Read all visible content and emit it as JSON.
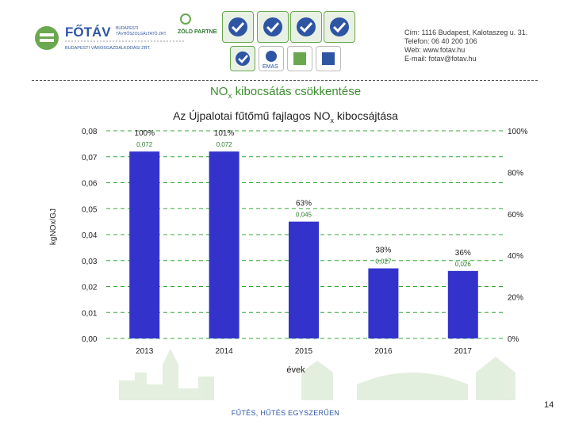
{
  "header": {
    "logo_name": "FŐTÁV",
    "logo_sub1": "BUDAPESTI",
    "logo_sub2": "TÁVHŐSZOLGÁLTATÓ ZRT.",
    "logo_sub3": "BUDAPESTI VÁROSGAZDÁLKODÁSI ZRT.",
    "partner_label": "ZÖLD PARTNER",
    "emas_label": "EMAS",
    "contact": {
      "address": "Cím: 1116 Budapest, Kalotaszeg u. 31.",
      "phone": "Telefon: 06 40 200 106",
      "web": "Web: www.fotav.hu",
      "email": "E-mail: fotav@fotav.hu"
    }
  },
  "main_title": "NOx kibocsátás csökkentése",
  "main_title_parts": {
    "pre": "NO",
    "sub": "x",
    "post": " kibocsátás csökkentése"
  },
  "chart_title_parts": {
    "pre": "Az Újpalotai fűtőmű fajlagos NO",
    "sub": "x",
    "post": " kibocsájtása"
  },
  "chart_data": {
    "type": "bar",
    "title": "Az Újpalotai fűtőmű fajlagos NOx kibocsájtása",
    "xlabel": "évek",
    "ylabel": "kgNOx/GJ",
    "categories": [
      "2013",
      "2014",
      "2015",
      "2016",
      "2017"
    ],
    "values": [
      0.072,
      0.072,
      0.045,
      0.027,
      0.026
    ],
    "value_labels": [
      "0,072",
      "0,072",
      "0,045",
      "0,027",
      "0,026"
    ],
    "percent_labels": [
      "100%",
      "101%",
      "63%",
      "38%",
      "36%"
    ],
    "ylim": [
      0,
      0.08
    ],
    "yticks": [
      "0,00",
      "0,01",
      "0,02",
      "0,03",
      "0,04",
      "0,05",
      "0,06",
      "0,07",
      "0,08"
    ],
    "y2lim": [
      0,
      100
    ],
    "y2ticks": [
      "0%",
      "20%",
      "40%",
      "60%",
      "80%",
      "100%"
    ],
    "gridlines": "dashed green",
    "bar_color": "#3333cc",
    "grid_color": "#33aa33"
  },
  "footer": "FŰTÉS, HŰTÉS EGYSZERŰEN",
  "page_number": "14"
}
